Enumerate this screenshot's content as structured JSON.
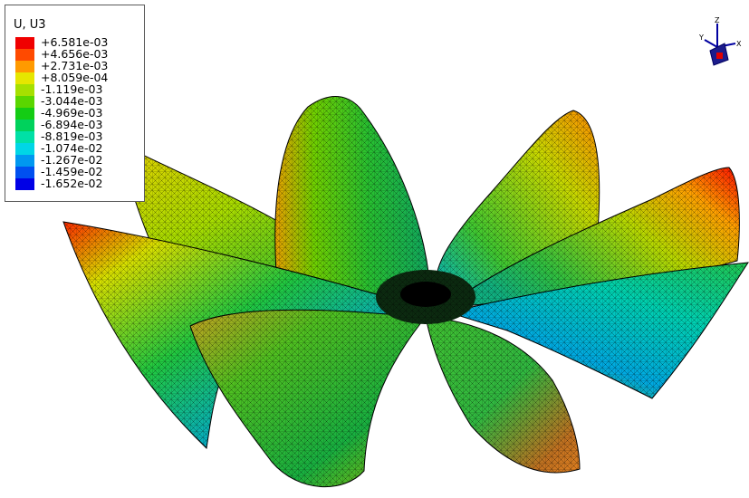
{
  "legend": {
    "title": "U, U3",
    "entries": [
      {
        "label": "+6.581e-03",
        "color": "#f00000"
      },
      {
        "label": "+4.656e-03",
        "color": "#ff4a00"
      },
      {
        "label": "+2.731e-03",
        "color": "#ff9a00"
      },
      {
        "label": "+8.059e-04",
        "color": "#e6e600"
      },
      {
        "label": "-1.119e-03",
        "color": "#a6e000"
      },
      {
        "label": "-3.044e-03",
        "color": "#5ad600"
      },
      {
        "label": "-4.969e-03",
        "color": "#14cc14"
      },
      {
        "label": "-6.894e-03",
        "color": "#00d25c"
      },
      {
        "label": "-8.819e-03",
        "color": "#00e0a6"
      },
      {
        "label": "-1.074e-02",
        "color": "#00d6e6"
      },
      {
        "label": "-1.267e-02",
        "color": "#0098f0"
      },
      {
        "label": "-1.459e-02",
        "color": "#0050f0"
      },
      {
        "label": "-1.652e-02",
        "color": "#0000e6"
      }
    ]
  },
  "triad": {
    "axes": [
      "Z",
      "Y",
      "X"
    ]
  }
}
